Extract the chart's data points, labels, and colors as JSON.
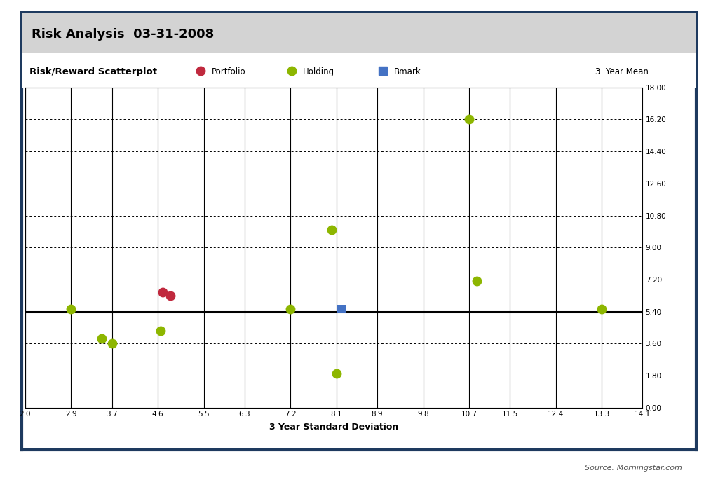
{
  "title": "Risk Analysis  03-31-2008",
  "subtitle": "Risk/Reward Scatterplot",
  "xlabel": "3 Year Standard Deviation",
  "ylabel_right_ticks": [
    0.0,
    1.8,
    3.6,
    5.4,
    7.2,
    9.0,
    10.8,
    12.6,
    14.4,
    16.2,
    18.0
  ],
  "x_ticks": [
    2.0,
    2.9,
    3.7,
    4.6,
    5.5,
    6.3,
    7.2,
    8.1,
    8.9,
    9.8,
    10.7,
    11.5,
    12.4,
    13.3,
    14.1
  ],
  "xlim": [
    2.0,
    14.1
  ],
  "ylim": [
    0.0,
    18.0
  ],
  "mean_line_y": 5.4,
  "holding_points": [
    [
      2.9,
      5.55
    ],
    [
      3.5,
      3.9
    ],
    [
      3.7,
      3.6
    ],
    [
      4.65,
      4.3
    ],
    [
      7.2,
      5.55
    ],
    [
      8.0,
      10.0
    ],
    [
      8.1,
      1.9
    ],
    [
      10.7,
      16.2
    ],
    [
      10.85,
      7.1
    ],
    [
      13.3,
      5.55
    ]
  ],
  "portfolio_points": [
    [
      4.7,
      6.5
    ],
    [
      4.85,
      6.3
    ]
  ],
  "bmark_points": [
    [
      8.2,
      5.55
    ]
  ],
  "holding_color": "#8db600",
  "portfolio_color": "#c0293e",
  "bmark_color": "#4472c4",
  "background_color": "#ffffff",
  "header_bg_color": "#d3d3d3",
  "border_color": "#1e3a5f",
  "source_text": "Source: Morningstar.com",
  "legend_label_portfolio": "Portfolio",
  "legend_label_holding": "Holding",
  "legend_label_bmark": "Bmark",
  "legend_label_mean": "3  Year Mean",
  "marker_size": 10
}
